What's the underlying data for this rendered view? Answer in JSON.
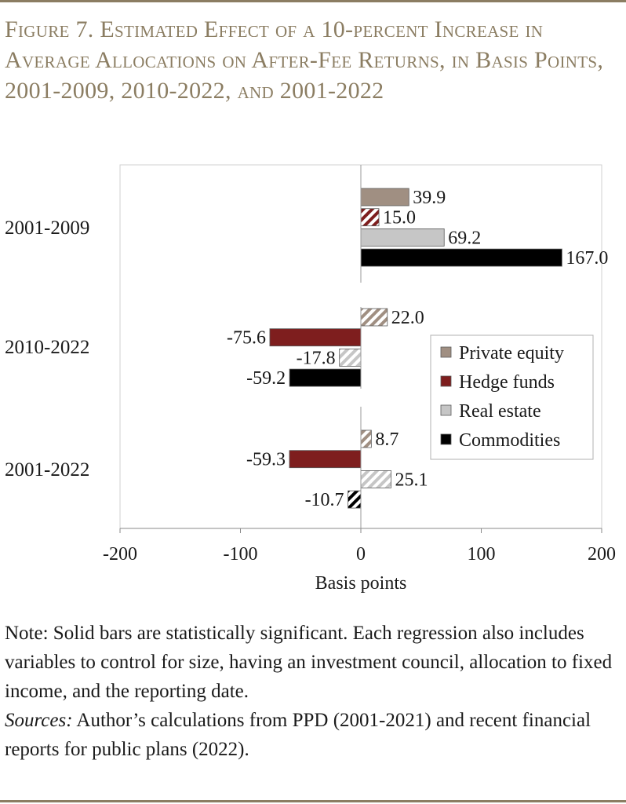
{
  "figure": {
    "title": "Figure 7. Estimated Effect of a 10-percent Increase in Average Allocations on After-Fee Returns, in Basis Points, 2001-2009, 2010-2022, and 2001-2022"
  },
  "colors": {
    "accent": "#8b7d62",
    "private_equity": "#a08f82",
    "hedge_funds": "#7e1e1e",
    "real_estate": "#c6c6c6",
    "commodities": "#000000"
  },
  "chart_data": {
    "type": "bar",
    "orientation": "horizontal",
    "categories": [
      "2001-2009",
      "2010-2022",
      "2001-2022"
    ],
    "series": [
      {
        "name": "Private equity",
        "values": [
          39.9,
          22.0,
          8.7
        ],
        "significant": [
          true,
          false,
          false
        ]
      },
      {
        "name": "Hedge funds",
        "values": [
          15.0,
          -75.6,
          -59.3
        ],
        "significant": [
          false,
          true,
          true
        ]
      },
      {
        "name": "Real estate",
        "values": [
          69.2,
          -17.8,
          25.1
        ],
        "significant": [
          true,
          false,
          false
        ]
      },
      {
        "name": "Commodities",
        "values": [
          167.0,
          -59.2,
          -10.7
        ],
        "significant": [
          true,
          true,
          false
        ]
      }
    ],
    "data_labels": [
      [
        "39.9",
        "15.0",
        "69.2",
        "167.0"
      ],
      [
        "22.0",
        "-75.6",
        "-17.8",
        "-59.2"
      ],
      [
        "8.7",
        "-59.3",
        "25.1",
        "-10.7"
      ]
    ],
    "xlabel": "Basis points",
    "ylabel": "",
    "xlim": [
      -200,
      200
    ],
    "xticks": [
      -200,
      -100,
      0,
      100,
      200
    ],
    "tick_labels": [
      "-200",
      "-100",
      "0",
      "100",
      "200"
    ],
    "grid": false,
    "legend_position": "right"
  },
  "notes": {
    "note": "Note: Solid bars are statistically significant.  Each regression also includes variables to control for size, having an investment council, allocation to fixed income, and the reporting date.",
    "sources_label": "Sources:",
    "sources_text": " Author’s calculations from PPD (2001-2021) and recent financial reports for public plans (2022)."
  }
}
